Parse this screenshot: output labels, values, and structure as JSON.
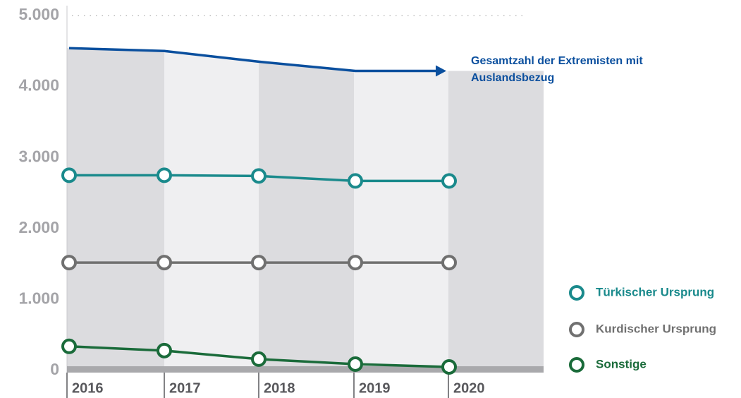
{
  "chart_data": {
    "type": "line",
    "categories": [
      "2016",
      "2017",
      "2018",
      "2019",
      "2020"
    ],
    "series": [
      {
        "name": "Gesamtzahl der Extremisten mit Auslandsbezug",
        "color": "#0a4f9e",
        "values": [
          4540,
          4500,
          4350,
          4220,
          4220
        ]
      },
      {
        "name": "Türkischer Ursprung",
        "color": "#1a8a8c",
        "values": [
          2750,
          2750,
          2740,
          2670,
          2670
        ]
      },
      {
        "name": "Kurdischer Ursprung",
        "color": "#707070",
        "values": [
          1520,
          1520,
          1520,
          1520,
          1520
        ]
      },
      {
        "name": "Sonstige",
        "color": "#1a6b3a",
        "values": [
          340,
          280,
          160,
          90,
          50
        ]
      }
    ],
    "ylim": [
      0,
      5000
    ],
    "yticks": [
      {
        "value": 0,
        "label": "0"
      },
      {
        "value": 1000,
        "label": "1.000"
      },
      {
        "value": 2000,
        "label": "2.000"
      },
      {
        "value": 3000,
        "label": "3.000"
      },
      {
        "value": 4000,
        "label": "4.000"
      },
      {
        "value": 5000,
        "label": "5.000"
      }
    ]
  }
}
